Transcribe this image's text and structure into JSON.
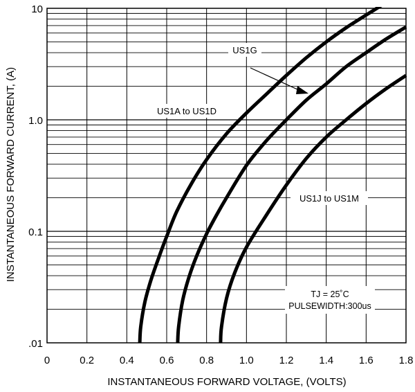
{
  "chart_data": {
    "type": "line",
    "xlabel": "INSTANTANEOUS FORWARD VOLTAGE, (VOLTS)",
    "ylabel": "INSTANTANEOUS  FORWARD CURRENT, (A)",
    "xlim": [
      0,
      1.8
    ],
    "ylim": [
      0.01,
      10
    ],
    "yscale": "log",
    "grid": true,
    "x_ticks": [
      "0",
      "0.2",
      "0.4",
      "0.6",
      "0.8",
      "1.0",
      "1.2",
      "1.4",
      "1.6",
      "1.8"
    ],
    "y_ticks": [
      ".01",
      "0.1",
      "1.0",
      "10"
    ],
    "series": [
      {
        "name": "US1A to US1D",
        "x": [
          0.465,
          0.47,
          0.49,
          0.52,
          0.56,
          0.6,
          0.65,
          0.72,
          0.8,
          0.9,
          1.0,
          1.1,
          1.2,
          1.3,
          1.4,
          1.5,
          1.6,
          1.69
        ],
        "y": [
          0.01,
          0.014,
          0.023,
          0.036,
          0.058,
          0.09,
          0.15,
          0.26,
          0.44,
          0.75,
          1.15,
          1.7,
          2.5,
          3.6,
          5.0,
          6.7,
          8.7,
          11.0
        ]
      },
      {
        "name": "US1G",
        "x": [
          0.655,
          0.66,
          0.68,
          0.71,
          0.75,
          0.8,
          0.85,
          0.9,
          1.0,
          1.1,
          1.2,
          1.3,
          1.4,
          1.5,
          1.6,
          1.7,
          1.8
        ],
        "y": [
          0.01,
          0.014,
          0.024,
          0.038,
          0.06,
          0.095,
          0.14,
          0.2,
          0.39,
          0.65,
          1.0,
          1.5,
          2.1,
          3.0,
          4.0,
          5.3,
          6.8
        ]
      },
      {
        "name": "US1J to US1M",
        "x": [
          0.87,
          0.875,
          0.9,
          0.94,
          1.0,
          1.1,
          1.2,
          1.3,
          1.4,
          1.5,
          1.6,
          1.7,
          1.8
        ],
        "y": [
          0.01,
          0.014,
          0.025,
          0.042,
          0.072,
          0.14,
          0.26,
          0.45,
          0.7,
          1.0,
          1.4,
          1.9,
          2.5
        ]
      }
    ],
    "annotations": {
      "condition_temp": "TJ = 25˚C",
      "condition_pulse": "PULSEWIDTH:300us"
    }
  }
}
